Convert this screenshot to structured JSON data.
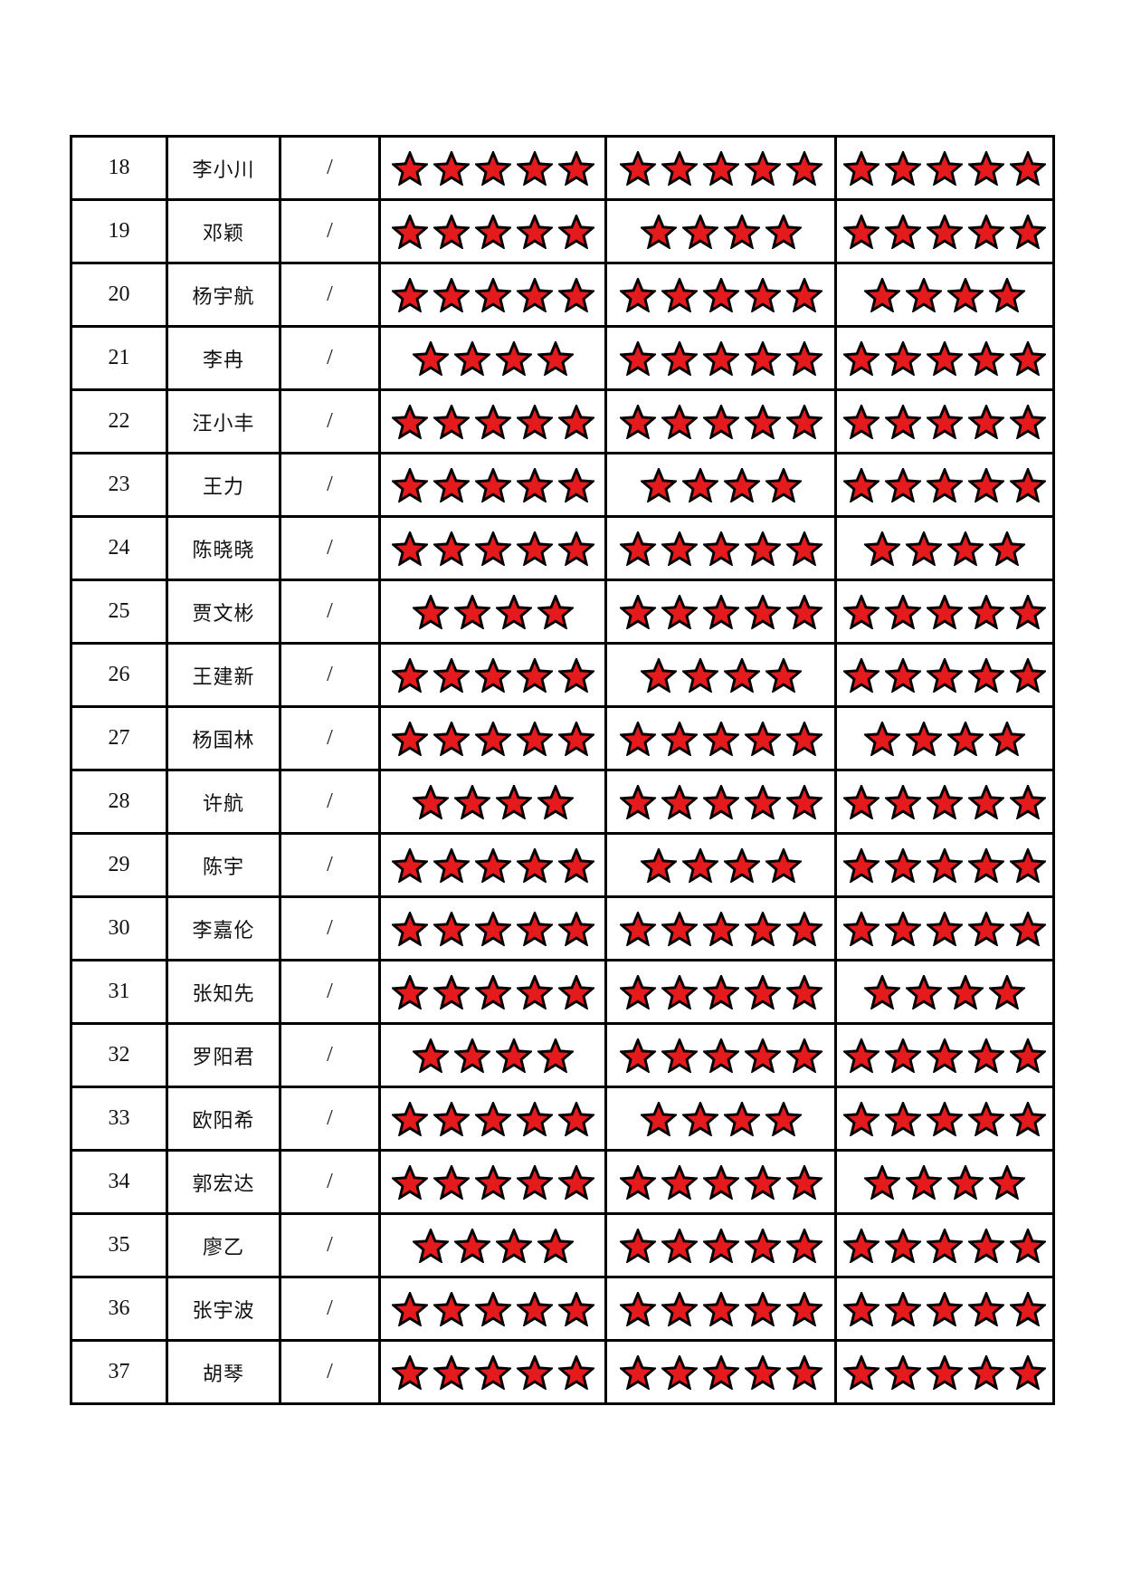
{
  "page": {
    "kind": "rating-table-page",
    "background": "#ffffff"
  },
  "table": {
    "star_fill_color": "#e51a1c",
    "star_outline_color": "#000000",
    "max_stars": 5,
    "rows": [
      {
        "index": "18",
        "name": "李小川",
        "slash": "/",
        "ratings": [
          5,
          5,
          5
        ]
      },
      {
        "index": "19",
        "name": "邓颖",
        "slash": "/",
        "ratings": [
          5,
          4,
          5
        ]
      },
      {
        "index": "20",
        "name": "杨宇航",
        "slash": "/",
        "ratings": [
          5,
          5,
          4
        ]
      },
      {
        "index": "21",
        "name": "李冉",
        "slash": "/",
        "ratings": [
          4,
          5,
          5
        ]
      },
      {
        "index": "22",
        "name": "汪小丰",
        "slash": "/",
        "ratings": [
          5,
          5,
          5
        ]
      },
      {
        "index": "23",
        "name": "王力",
        "slash": "/",
        "ratings": [
          5,
          4,
          5
        ]
      },
      {
        "index": "24",
        "name": "陈晓晓",
        "slash": "/",
        "ratings": [
          5,
          5,
          4
        ]
      },
      {
        "index": "25",
        "name": "贾文彬",
        "slash": "/",
        "ratings": [
          4,
          5,
          5
        ]
      },
      {
        "index": "26",
        "name": "王建新",
        "slash": "/",
        "ratings": [
          5,
          4,
          5
        ]
      },
      {
        "index": "27",
        "name": "杨国林",
        "slash": "/",
        "ratings": [
          5,
          5,
          4
        ]
      },
      {
        "index": "28",
        "name": "许航",
        "slash": "/",
        "ratings": [
          4,
          5,
          5
        ]
      },
      {
        "index": "29",
        "name": "陈宇",
        "slash": "/",
        "ratings": [
          5,
          4,
          5
        ]
      },
      {
        "index": "30",
        "name": "李嘉伦",
        "slash": "/",
        "ratings": [
          5,
          5,
          5
        ]
      },
      {
        "index": "31",
        "name": "张知先",
        "slash": "/",
        "ratings": [
          5,
          5,
          4
        ]
      },
      {
        "index": "32",
        "name": "罗阳君",
        "slash": "/",
        "ratings": [
          4,
          5,
          5
        ]
      },
      {
        "index": "33",
        "name": "欧阳希",
        "slash": "/",
        "ratings": [
          5,
          4,
          5
        ]
      },
      {
        "index": "34",
        "name": "郭宏达",
        "slash": "/",
        "ratings": [
          5,
          5,
          4
        ]
      },
      {
        "index": "35",
        "name": "廖乙",
        "slash": "/",
        "ratings": [
          4,
          5,
          5
        ]
      },
      {
        "index": "36",
        "name": "张宇波",
        "slash": "/",
        "ratings": [
          5,
          5,
          5
        ]
      },
      {
        "index": "37",
        "name": "胡琴",
        "slash": "/",
        "ratings": [
          5,
          5,
          5
        ]
      }
    ]
  }
}
